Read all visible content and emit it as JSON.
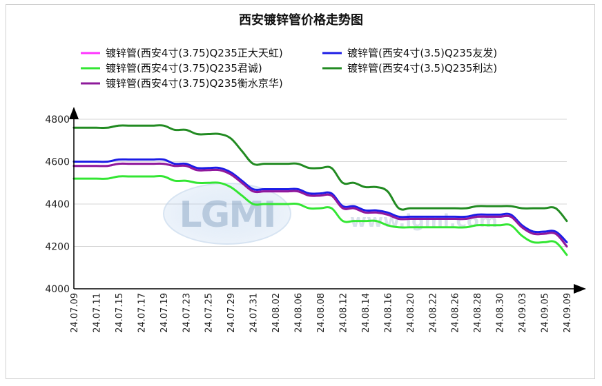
{
  "chart_data": {
    "type": "line",
    "title": "西安镀锌管价格走势图",
    "xlabel": "",
    "ylabel": "",
    "ylim": [
      4000,
      4800
    ],
    "yticks": [
      4000,
      4200,
      4400,
      4600,
      4800
    ],
    "grid": "horizontal",
    "legend_position": "top",
    "x": [
      "24.07.09",
      "24.07.10",
      "24.07.11",
      "24.07.12",
      "24.07.15",
      "24.07.16",
      "24.07.17",
      "24.07.18",
      "24.07.19",
      "24.07.22",
      "24.07.23",
      "24.07.24",
      "24.07.25",
      "24.07.26",
      "24.07.29",
      "24.07.30",
      "24.07.31",
      "24.08.01",
      "24.08.02",
      "24.08.05",
      "24.08.06",
      "24.08.07",
      "24.08.08",
      "24.08.09",
      "24.08.12",
      "24.08.13",
      "24.08.14",
      "24.08.15",
      "24.08.16",
      "24.08.19",
      "24.08.20",
      "24.08.21",
      "24.08.22",
      "24.08.23",
      "24.08.26",
      "24.08.27",
      "24.08.28",
      "24.08.29",
      "24.08.30",
      "24.09.02",
      "24.09.03",
      "24.09.04",
      "24.09.05",
      "24.09.06",
      "24.09.09"
    ],
    "xtick_labels": [
      "24.07.09",
      "24.07.11",
      "24.07.15",
      "24.07.17",
      "24.07.19",
      "24.07.23",
      "24.07.25",
      "24.07.29",
      "24.07.31",
      "24.08.02",
      "24.08.06",
      "24.08.08",
      "24.08.12",
      "24.08.14",
      "24.08.16",
      "24.08.20",
      "24.08.22",
      "24.08.26",
      "24.08.28",
      "24.08.30",
      "24.09.03",
      "24.09.05",
      "24.09.09"
    ],
    "series": [
      {
        "name": "镀锌管(西安4寸(3.75)Q235正大天虹)",
        "color": "#ff33ff",
        "values": [
          4580,
          4580,
          4580,
          4580,
          4590,
          4590,
          4590,
          4590,
          4590,
          4580,
          4580,
          4560,
          4560,
          4560,
          4540,
          4500,
          4460,
          4460,
          4460,
          4460,
          4460,
          4440,
          4440,
          4440,
          4380,
          4380,
          4360,
          4360,
          4350,
          4330,
          4330,
          4330,
          4330,
          4330,
          4330,
          4330,
          4340,
          4340,
          4340,
          4340,
          4290,
          4260,
          4260,
          4260,
          4200
        ]
      },
      {
        "name": "镀锌管(西安4寸(3.5)Q235友发)",
        "color": "#1c1ce6",
        "values": [
          4600,
          4600,
          4600,
          4600,
          4610,
          4610,
          4610,
          4610,
          4610,
          4590,
          4590,
          4570,
          4570,
          4570,
          4550,
          4510,
          4470,
          4470,
          4470,
          4470,
          4470,
          4450,
          4450,
          4450,
          4390,
          4390,
          4370,
          4370,
          4360,
          4340,
          4340,
          4340,
          4340,
          4340,
          4340,
          4340,
          4350,
          4350,
          4350,
          4350,
          4300,
          4270,
          4270,
          4270,
          4220
        ]
      },
      {
        "name": "镀锌管(西安4寸(3.75)Q235君诚)",
        "color": "#33e633",
        "values": [
          4520,
          4520,
          4520,
          4520,
          4530,
          4530,
          4530,
          4530,
          4530,
          4510,
          4510,
          4500,
          4500,
          4500,
          4480,
          4440,
          4400,
          4400,
          4400,
          4400,
          4400,
          4380,
          4380,
          4380,
          4320,
          4320,
          4320,
          4320,
          4300,
          4290,
          4290,
          4290,
          4290,
          4290,
          4290,
          4290,
          4300,
          4300,
          4300,
          4300,
          4250,
          4220,
          4220,
          4220,
          4160
        ]
      },
      {
        "name": "镀锌管(西安4寸(3.5)Q235利达)",
        "color": "#228b22",
        "values": [
          4760,
          4760,
          4760,
          4760,
          4770,
          4770,
          4770,
          4770,
          4770,
          4750,
          4750,
          4730,
          4730,
          4730,
          4710,
          4650,
          4590,
          4590,
          4590,
          4590,
          4590,
          4570,
          4570,
          4570,
          4500,
          4500,
          4480,
          4480,
          4460,
          4380,
          4380,
          4380,
          4380,
          4380,
          4380,
          4380,
          4390,
          4390,
          4390,
          4390,
          4380,
          4380,
          4380,
          4380,
          4320
        ]
      },
      {
        "name": "镀锌管(西安4寸(3.75)Q235衡水京华)",
        "color": "#8e1a9a",
        "values": [
          4580,
          4580,
          4580,
          4580,
          4590,
          4590,
          4590,
          4590,
          4590,
          4580,
          4580,
          4560,
          4560,
          4560,
          4540,
          4500,
          4460,
          4460,
          4460,
          4460,
          4460,
          4440,
          4440,
          4440,
          4380,
          4380,
          4360,
          4360,
          4350,
          4330,
          4330,
          4330,
          4330,
          4330,
          4330,
          4330,
          4340,
          4340,
          4340,
          4340,
          4290,
          4260,
          4260,
          4260,
          4200
        ]
      }
    ],
    "legend_order": [
      0,
      1,
      2,
      3,
      4
    ],
    "draw_order": [
      3,
      1,
      0,
      4,
      2
    ]
  },
  "watermark": {
    "logo_text": "LGMI",
    "url_text": "www.lgmi.com"
  }
}
